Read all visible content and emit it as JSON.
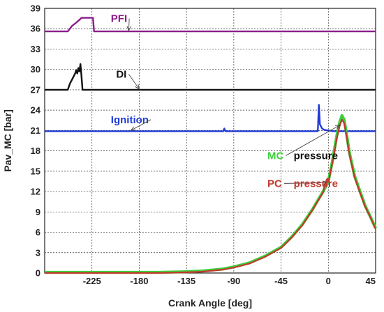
{
  "chart_data": {
    "type": "line",
    "title": "",
    "xlabel": "Crank Angle [deg]",
    "ylabel": "Pav_MC [bar]",
    "xlim": [
      -270,
      45
    ],
    "ylim": [
      0,
      39
    ],
    "xticks": [
      -225,
      -180,
      -135,
      -90,
      -45,
      0,
      45
    ],
    "yticks": [
      0,
      3,
      6,
      9,
      12,
      15,
      18,
      21,
      24,
      27,
      30,
      33,
      36,
      39
    ],
    "grid": true,
    "series": [
      {
        "name": "PFI",
        "color": "#8b1c8b",
        "x": [
          -270,
          -248,
          -244,
          -240,
          -237,
          -235,
          -230,
          -225,
          -224,
          -223,
          -222,
          45
        ],
        "y": [
          35.6,
          35.6,
          36.4,
          36.9,
          37.3,
          37.6,
          37.6,
          37.6,
          37.6,
          35.6,
          35.6,
          35.6
        ]
      },
      {
        "name": "DI",
        "color": "#111111",
        "x": [
          -270,
          -248,
          -246,
          -243,
          -241,
          -240,
          -239,
          -238,
          -237,
          -236,
          -235,
          -234,
          45
        ],
        "y": [
          27.0,
          27.0,
          27.9,
          28.8,
          29.4,
          29.9,
          29.4,
          30.2,
          29.7,
          30.8,
          29.0,
          27.0,
          27.0
        ]
      },
      {
        "name": "Ignition",
        "color": "#1f3bd6",
        "x": [
          -270,
          -100,
          -99,
          -98,
          -10,
          -9,
          -8,
          -7,
          -6,
          -4,
          0,
          5,
          10,
          45
        ],
        "y": [
          20.9,
          20.9,
          21.3,
          20.9,
          20.9,
          24.8,
          21.9,
          21.6,
          21.3,
          21.1,
          21.0,
          20.9,
          20.9,
          20.9
        ]
      },
      {
        "name": "MC pressure",
        "color": "#3ed03e",
        "x": [
          -270,
          -160,
          -135,
          -120,
          -100,
          -90,
          -75,
          -60,
          -45,
          -35,
          -25,
          -15,
          -10,
          -5,
          0,
          4,
          8,
          11,
          13,
          15,
          17,
          20,
          25,
          30,
          35,
          40,
          45
        ],
        "y": [
          0.1,
          0.1,
          0.2,
          0.3,
          0.6,
          0.9,
          1.5,
          2.5,
          3.8,
          5.3,
          7.1,
          9.4,
          10.7,
          12.0,
          13.5,
          16.6,
          20.2,
          22.3,
          23.2,
          22.6,
          20.8,
          17.8,
          14.3,
          12.1,
          9.9,
          8.3,
          6.6
        ]
      },
      {
        "name": "PC pressure",
        "color": "#c0392b",
        "x": [
          -270,
          -160,
          -135,
          -120,
          -100,
          -90,
          -75,
          -60,
          -45,
          -35,
          -25,
          -15,
          -10,
          -5,
          -3,
          -1,
          0,
          4,
          8,
          11,
          13,
          15,
          17,
          20,
          25,
          30,
          35,
          40,
          45
        ],
        "y": [
          0.0,
          0.0,
          0.1,
          0.2,
          0.5,
          0.8,
          1.4,
          2.4,
          3.7,
          5.2,
          7.0,
          9.3,
          10.6,
          11.9,
          13.3,
          13.9,
          13.4,
          16.3,
          19.8,
          21.8,
          22.6,
          22.1,
          20.4,
          17.5,
          14.1,
          11.9,
          9.8,
          8.2,
          6.5
        ]
      }
    ],
    "annotations": [
      {
        "text": "PFI",
        "color": "#8b1c8b",
        "label_x": -207,
        "label_y": 37.5,
        "arrow_to_x": -190,
        "arrow_to_y": 35.7
      },
      {
        "text": "DI",
        "color": "#111111",
        "label_x": -202,
        "label_y": 29.3,
        "arrow_to_x": -180,
        "arrow_to_y": 27.1
      },
      {
        "text": "Ignition",
        "color": "#1f3bd6",
        "label_x": -207,
        "label_y": 22.6,
        "arrow_to_x": -188,
        "arrow_to_y": 21.0
      },
      {
        "text": "MC",
        "color": "#3ed03e",
        "label_x": -58,
        "label_y": 17.3,
        "arrow_to_x": 11,
        "arrow_to_y": 21.8
      },
      {
        "text": "pressure",
        "color": "#111111",
        "label_x": -33,
        "label_y": 17.3
      },
      {
        "text": "PC",
        "color": "#c0392b",
        "label_x": -58,
        "label_y": 13.2,
        "arrow_to_x": -1,
        "arrow_to_y": 13.3
      },
      {
        "text": "pressure",
        "color": "#c0392b",
        "label_x": -33,
        "label_y": 13.2
      }
    ]
  }
}
